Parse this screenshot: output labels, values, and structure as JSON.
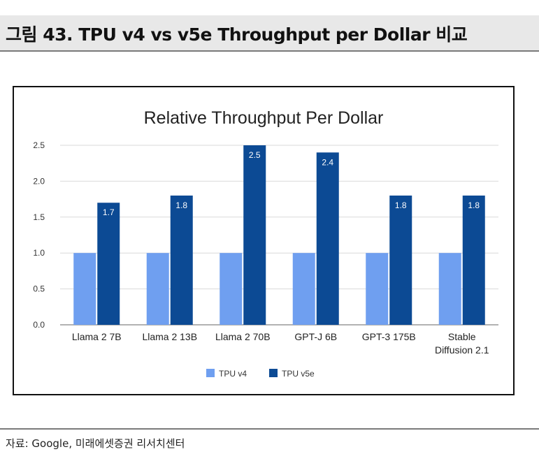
{
  "header": {
    "title": "그림 43. TPU v4 vs v5e Throughput per Dollar 비교"
  },
  "footer": {
    "source": "자료: Google, 미래에셋증권 리서치센터"
  },
  "chart_data": {
    "type": "bar",
    "title": "Relative Throughput Per Dollar",
    "categories": [
      [
        "Llama 2 7B"
      ],
      [
        "Llama 2 13B"
      ],
      [
        "Llama 2 70B"
      ],
      [
        "GPT-J 6B"
      ],
      [
        "GPT-3 175B"
      ],
      [
        "Stable",
        "Diffusion 2.1"
      ]
    ],
    "series": [
      {
        "name": "TPU v4",
        "values": [
          1.0,
          1.0,
          1.0,
          1.0,
          1.0,
          1.0
        ],
        "color": "#6f9ff0"
      },
      {
        "name": "TPU v5e",
        "values": [
          1.7,
          1.8,
          2.5,
          2.4,
          1.8,
          1.8
        ],
        "color": "#0c4a94",
        "data_labels": [
          "1.7",
          "1.8",
          "2.5",
          "2.4",
          "1.8",
          "1.8"
        ]
      }
    ],
    "ylim": [
      0,
      2.5
    ],
    "yticks": [
      "0.0",
      "0.5",
      "1.0",
      "1.5",
      "2.0",
      "2.5"
    ],
    "grid": true,
    "legend": "bottom-center"
  }
}
